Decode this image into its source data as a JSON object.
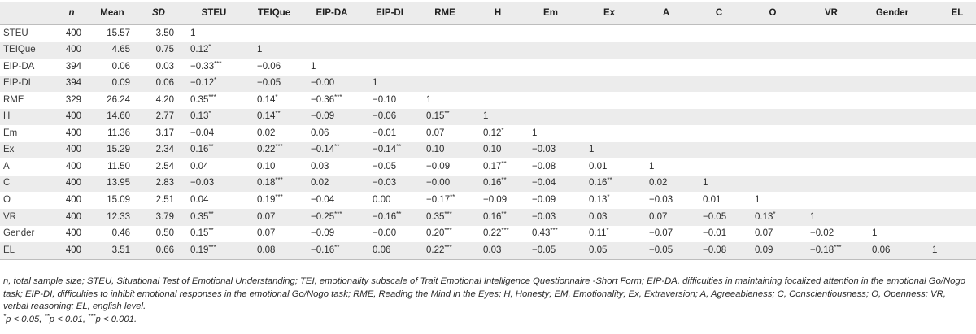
{
  "table": {
    "header": [
      "",
      "n",
      "Mean",
      "SD",
      "STEU",
      "TEIQue",
      "EIP-DA",
      "EIP-DI",
      "RME",
      "H",
      "Em",
      "Ex",
      "A",
      "C",
      "O",
      "VR",
      "Gender",
      "EL"
    ],
    "italic_header_indices": [
      1,
      3
    ],
    "rows": [
      {
        "label": "STEU",
        "n": "400",
        "mean": "15.57",
        "sd": "3.50",
        "corr": [
          [
            "1",
            ""
          ]
        ]
      },
      {
        "label": "TEIQue",
        "n": "400",
        "mean": "4.65",
        "sd": "0.75",
        "corr": [
          [
            "0.12",
            "*"
          ],
          [
            "1",
            ""
          ]
        ]
      },
      {
        "label": "EIP-DA",
        "n": "394",
        "mean": "0.06",
        "sd": "0.03",
        "corr": [
          [
            "−0.33",
            "***"
          ],
          [
            "−0.06",
            ""
          ],
          [
            "1",
            ""
          ]
        ]
      },
      {
        "label": "EIP-DI",
        "n": "394",
        "mean": "0.09",
        "sd": "0.06",
        "corr": [
          [
            "−0.12",
            "*"
          ],
          [
            "−0.05",
            ""
          ],
          [
            "−0.00",
            ""
          ],
          [
            "1",
            ""
          ]
        ]
      },
      {
        "label": "RME",
        "n": "329",
        "mean": "26.24",
        "sd": "4.20",
        "corr": [
          [
            "0.35",
            "***"
          ],
          [
            "0.14",
            "*"
          ],
          [
            "−0.36",
            "***"
          ],
          [
            "−0.10",
            ""
          ],
          [
            "1",
            ""
          ]
        ]
      },
      {
        "label": "H",
        "n": "400",
        "mean": "14.60",
        "sd": "2.77",
        "corr": [
          [
            "0.13",
            "*"
          ],
          [
            "0.14",
            "**"
          ],
          [
            "−0.09",
            ""
          ],
          [
            "−0.06",
            ""
          ],
          [
            "0.15",
            "**"
          ],
          [
            "1",
            ""
          ]
        ]
      },
      {
        "label": "Em",
        "n": "400",
        "mean": "11.36",
        "sd": "3.17",
        "corr": [
          [
            "−0.04",
            ""
          ],
          [
            "0.02",
            ""
          ],
          [
            "0.06",
            ""
          ],
          [
            "−0.01",
            ""
          ],
          [
            "0.07",
            ""
          ],
          [
            "0.12",
            "*"
          ],
          [
            "1",
            ""
          ]
        ]
      },
      {
        "label": "Ex",
        "n": "400",
        "mean": "15.29",
        "sd": "2.34",
        "corr": [
          [
            "0.16",
            "**"
          ],
          [
            "0.22",
            "***"
          ],
          [
            "−0.14",
            "**"
          ],
          [
            "−0.14",
            "**"
          ],
          [
            "0.10",
            ""
          ],
          [
            "0.10",
            ""
          ],
          [
            "−0.03",
            ""
          ],
          [
            "1",
            ""
          ]
        ]
      },
      {
        "label": "A",
        "n": "400",
        "mean": "11.50",
        "sd": "2.54",
        "corr": [
          [
            "0.04",
            ""
          ],
          [
            "0.10",
            ""
          ],
          [
            "0.03",
            ""
          ],
          [
            "−0.05",
            ""
          ],
          [
            "−0.09",
            ""
          ],
          [
            "0.17",
            "**"
          ],
          [
            "−0.08",
            ""
          ],
          [
            "0.01",
            ""
          ],
          [
            "1",
            ""
          ]
        ]
      },
      {
        "label": "C",
        "n": "400",
        "mean": "13.95",
        "sd": "2.83",
        "corr": [
          [
            "−0.03",
            ""
          ],
          [
            "0.18",
            "***"
          ],
          [
            "0.02",
            ""
          ],
          [
            "−0.03",
            ""
          ],
          [
            "−0.00",
            ""
          ],
          [
            "0.16",
            "**"
          ],
          [
            "−0.04",
            ""
          ],
          [
            "0.16",
            "**"
          ],
          [
            "0.02",
            ""
          ],
          [
            "1",
            ""
          ]
        ]
      },
      {
        "label": "O",
        "n": "400",
        "mean": "15.09",
        "sd": "2.51",
        "corr": [
          [
            "0.04",
            ""
          ],
          [
            "0.19",
            "***"
          ],
          [
            "−0.04",
            ""
          ],
          [
            "0.00",
            ""
          ],
          [
            "−0.17",
            "**"
          ],
          [
            "−0.09",
            ""
          ],
          [
            "−0.09",
            ""
          ],
          [
            "0.13",
            "*"
          ],
          [
            "−0.03",
            ""
          ],
          [
            "0.01",
            ""
          ],
          [
            "1",
            ""
          ]
        ]
      },
      {
        "label": "VR",
        "n": "400",
        "mean": "12.33",
        "sd": "3.79",
        "corr": [
          [
            "0.35",
            "**"
          ],
          [
            "0.07",
            ""
          ],
          [
            "−0.25",
            "***"
          ],
          [
            "−0.16",
            "**"
          ],
          [
            "0.35",
            "***"
          ],
          [
            "0.16",
            "**"
          ],
          [
            "−0.03",
            ""
          ],
          [
            "0.03",
            ""
          ],
          [
            "0.07",
            ""
          ],
          [
            "−0.05",
            ""
          ],
          [
            "0.13",
            "*"
          ],
          [
            "1",
            ""
          ]
        ]
      },
      {
        "label": "Gender",
        "n": "400",
        "mean": "0.46",
        "sd": "0.50",
        "corr": [
          [
            "0.15",
            "**"
          ],
          [
            "0.07",
            ""
          ],
          [
            "−0.09",
            ""
          ],
          [
            "−0.00",
            ""
          ],
          [
            "0.20",
            "***"
          ],
          [
            "0.22",
            "***"
          ],
          [
            "0.43",
            "***"
          ],
          [
            "0.11",
            "*"
          ],
          [
            "−0.07",
            ""
          ],
          [
            "−0.01",
            ""
          ],
          [
            "0.07",
            ""
          ],
          [
            "−0.02",
            ""
          ],
          [
            "1",
            ""
          ]
        ]
      },
      {
        "label": "EL",
        "n": "400",
        "mean": "3.51",
        "sd": "0.66",
        "corr": [
          [
            "0.19",
            "***"
          ],
          [
            "0.08",
            ""
          ],
          [
            "−0.16",
            "**"
          ],
          [
            "0.06",
            ""
          ],
          [
            "0.22",
            "***"
          ],
          [
            "0.03",
            ""
          ],
          [
            "−0.05",
            ""
          ],
          [
            "0.05",
            ""
          ],
          [
            "−0.05",
            ""
          ],
          [
            "−0.08",
            ""
          ],
          [
            "0.09",
            ""
          ],
          [
            "−0.18",
            "***"
          ],
          [
            "0.06",
            ""
          ],
          [
            "1",
            ""
          ]
        ]
      }
    ]
  },
  "notes": {
    "abbreviations": "n, total sample size; STEU, Situational Test of Emotional Understanding; TEI, emotionality subscale of Trait Emotional Intelligence Questionnaire -Short Form; EIP-DA, difficulties in maintaining focalized attention in the emotional Go/Nogo task; EIP-DI, difficulties to inhibit emotional responses in the emotional Go/Nogo task; RME, Reading the Mind in the Eyes; H, Honesty; EM, Emotionality; Ex, Extraversion; A, Agreeableness; C, Conscientiousness; O, Openness; VR, verbal reasoning; EL, english level.",
    "significance": [
      {
        "stars": "*",
        "text": "p < 0.05, "
      },
      {
        "stars": "**",
        "text": "p < 0.01, "
      },
      {
        "stars": "***",
        "text": "p < 0.001."
      }
    ]
  }
}
